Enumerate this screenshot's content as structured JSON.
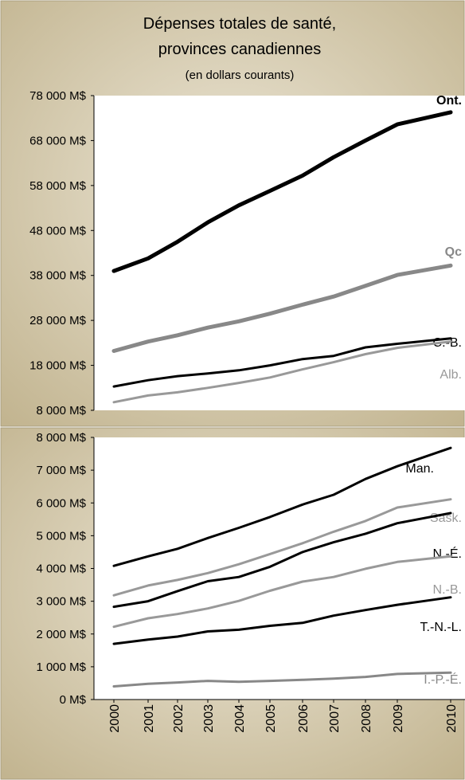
{
  "title_line1": "Dépenses totales de santé,",
  "title_line2": "provinces canadiennes",
  "subtitle": "(en dollars courants)",
  "colors": {
    "panel_light": "#ece6d6",
    "panel_dark": "#c1b38e",
    "plot_bg": "#ffffff",
    "black_series": "#000000",
    "gray_series": "#999999",
    "qc_series": "#888888"
  },
  "chart_data": [
    {
      "type": "line",
      "x": [
        "2000",
        "2001",
        "2002",
        "2003",
        "2004",
        "2005",
        "2006",
        "2007",
        "2008",
        "2009",
        "2010"
      ],
      "ylim": [
        8000,
        78000
      ],
      "yticks": [
        8000,
        18000,
        28000,
        38000,
        48000,
        58000,
        68000,
        78000
      ],
      "ytick_labels": [
        "8 000 M$",
        "18 000 M$",
        "28 000 M$",
        "38 000 M$",
        "48 000 M$",
        "58 000 M$",
        "68 000 M$",
        "78 000 M$"
      ],
      "grid": false,
      "series": [
        {
          "name": "Ont.",
          "color": "#000000",
          "width": 5,
          "bold": true,
          "values": [
            39000,
            41800,
            45500,
            49800,
            53600,
            56800,
            60200,
            64300,
            68000,
            71600,
            74300
          ]
        },
        {
          "name": "Qc",
          "color": "#888888",
          "width": 5,
          "bold": true,
          "values": [
            21200,
            23300,
            24700,
            26400,
            27800,
            29500,
            31500,
            33300,
            35700,
            38100,
            40200
          ]
        },
        {
          "name": "C.-B.",
          "color": "#000000",
          "width": 3,
          "bold": false,
          "values": [
            13300,
            14700,
            15600,
            16200,
            16900,
            18000,
            19400,
            20100,
            22000,
            22800,
            24000
          ]
        },
        {
          "name": "Alb.",
          "color": "#999999",
          "width": 3,
          "bold": false,
          "values": [
            9800,
            11300,
            12000,
            13000,
            14100,
            15300,
            17100,
            18700,
            20500,
            21900,
            23300
          ]
        }
      ]
    },
    {
      "type": "line",
      "x": [
        "2000",
        "2001",
        "2002",
        "2003",
        "2004",
        "2005",
        "2006",
        "2007",
        "2008",
        "2009",
        "2010"
      ],
      "ylim": [
        0,
        8000
      ],
      "yticks": [
        0,
        1000,
        2000,
        3000,
        4000,
        5000,
        6000,
        7000,
        8000
      ],
      "ytick_labels": [
        "0 M$",
        "1 000 M$",
        "2 000 M$",
        "3 000 M$",
        "4 000 M$",
        "5 000 M$",
        "6 000 M$",
        "7 000 M$",
        "8 000 M$"
      ],
      "xtick_labels": [
        "2000",
        "2001",
        "2002",
        "2003",
        "2004",
        "2005",
        "2006",
        "2007",
        "2008",
        "2009",
        "2010"
      ],
      "grid": false,
      "series": [
        {
          "name": "Man.",
          "color": "#000000",
          "width": 3,
          "values": [
            4080,
            4370,
            4600,
            4930,
            5240,
            5570,
            5950,
            6250,
            6730,
            7120,
            7680
          ]
        },
        {
          "name": "Sask.",
          "color": "#999999",
          "width": 3,
          "values": [
            3180,
            3480,
            3650,
            3860,
            4130,
            4440,
            4770,
            5120,
            5450,
            5860,
            6110
          ]
        },
        {
          "name": "N.-É.",
          "color": "#000000",
          "width": 3,
          "values": [
            2830,
            3000,
            3310,
            3610,
            3740,
            4050,
            4500,
            4800,
            5060,
            5380,
            5690
          ]
        },
        {
          "name": "N.-B.",
          "color": "#999999",
          "width": 3,
          "values": [
            2220,
            2480,
            2610,
            2780,
            3010,
            3320,
            3600,
            3740,
            3990,
            4200,
            4370
          ]
        },
        {
          "name": "T.-N.-L.",
          "color": "#000000",
          "width": 3,
          "values": [
            1700,
            1830,
            1920,
            2080,
            2130,
            2250,
            2340,
            2560,
            2730,
            2890,
            3120
          ]
        },
        {
          "name": "Î.-P.-É.",
          "color": "#888888",
          "width": 3,
          "values": [
            400,
            480,
            520,
            570,
            540,
            570,
            600,
            640,
            690,
            780,
            820
          ]
        }
      ]
    }
  ]
}
